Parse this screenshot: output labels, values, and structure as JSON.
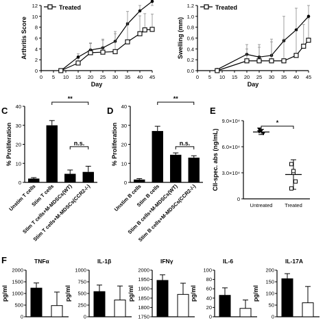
{
  "chart_data": [
    {
      "id": "arthritis",
      "type": "line",
      "ylabel": "Arthritis Score",
      "xlabel": "Day",
      "ylim": [
        0,
        12
      ],
      "yticks": [
        0,
        2,
        4,
        6,
        8,
        10,
        12
      ],
      "xlim": [
        0,
        45
      ],
      "xticks": [
        0,
        5,
        10,
        15,
        20,
        25,
        30,
        35,
        40,
        45
      ],
      "legend": "Treated",
      "series": [
        {
          "role": "untreated",
          "marker": "circle-filled",
          "x": [
            8,
            15,
            20,
            25,
            30,
            35,
            40,
            45
          ],
          "y": [
            0,
            2.5,
            3.8,
            4.2,
            5.4,
            8.6,
            11.0,
            13.0
          ],
          "err": [
            0,
            0.6,
            1.2,
            1.4,
            1.8,
            2.3,
            1.6,
            0.6
          ]
        },
        {
          "role": "treated",
          "name": "Treated",
          "marker": "square-open",
          "x": [
            8,
            15,
            20,
            25,
            30,
            35,
            40,
            42,
            45
          ],
          "y": [
            0,
            1.4,
            3.3,
            3.4,
            3.5,
            5.3,
            6.8,
            7.5,
            7.6
          ],
          "err": [
            0,
            0.8,
            1.8,
            2.4,
            3.3,
            3.6,
            3.3,
            3.0,
            2.8
          ]
        }
      ]
    },
    {
      "id": "swelling",
      "type": "line",
      "ylabel": "Swelling (mm)",
      "xlabel": "Day",
      "ylim": [
        0,
        1.2
      ],
      "yticks": [
        "0.0",
        "0.2",
        "0.4",
        "0.6",
        "0.8",
        "1.0",
        "1.2"
      ],
      "xlim": [
        0,
        45
      ],
      "xticks": [
        0,
        5,
        10,
        15,
        20,
        25,
        30,
        35,
        40,
        45
      ],
      "legend": "Treated",
      "series": [
        {
          "role": "untreated",
          "marker": "circle-filled",
          "x": [
            8,
            20,
            25,
            30,
            35,
            40,
            45
          ],
          "y": [
            0.02,
            0.3,
            0.25,
            0.28,
            0.55,
            0.75,
            1.0
          ],
          "err": [
            0,
            0.1,
            0.18,
            0.3,
            0.45,
            0.4,
            0.25
          ]
        },
        {
          "role": "treated",
          "name": "Treated",
          "marker": "square-open",
          "x": [
            8,
            20,
            25,
            30,
            35,
            40,
            43,
            45
          ],
          "y": [
            0.0,
            0.18,
            0.18,
            0.18,
            0.18,
            0.28,
            0.45,
            0.56
          ],
          "err": [
            0,
            0.3,
            0.3,
            0.35,
            0.4,
            0.45,
            0.4,
            0.4
          ]
        }
      ]
    },
    {
      "id": "C",
      "type": "bar",
      "ylabel": "% Proliferation",
      "ylim": [
        0,
        40
      ],
      "yticks": [
        0,
        10,
        20,
        30,
        40
      ],
      "categories": [
        "Unstim T cells",
        "Stim T cells",
        "Stim T cells+M-MDSCs(WT)",
        "Stim T cells+M-MDSCs(CCR2-/-)"
      ],
      "values": [
        2.0,
        30.0,
        4.5,
        5.5
      ],
      "err": [
        0.5,
        2.5,
        2.0,
        3.0
      ],
      "brackets": [
        {
          "from": 1,
          "to": 3,
          "label": "**"
        },
        {
          "from": 2,
          "to": 3,
          "label": "n.s."
        }
      ]
    },
    {
      "id": "D",
      "type": "bar",
      "ylabel": "% Proliferation",
      "ylim": [
        0,
        40
      ],
      "yticks": [
        0,
        10,
        20,
        30,
        40
      ],
      "categories": [
        "Unstim B cells",
        "Stim B cells",
        "Stim B cells+M-MDSCs(WT)",
        "Stim B cells+M-MDSCs(CCR2-/-)"
      ],
      "values": [
        1.5,
        27.0,
        14.5,
        13.0
      ],
      "err": [
        0.5,
        2.5,
        1.0,
        1.0
      ],
      "brackets": [
        {
          "from": 1,
          "to": 3,
          "label": "**"
        },
        {
          "from": 2,
          "to": 3,
          "label": "n.s."
        }
      ]
    },
    {
      "id": "E",
      "type": "scatter",
      "ylabel": "CII-spec. abs (ng/mL)",
      "ylim": [
        0,
        90000
      ],
      "yticks": [
        0,
        30000,
        60000,
        90000
      ],
      "ytick_labels": [
        "0",
        "3.0×10⁴",
        "6.0×10⁴",
        "9.0×10⁴"
      ],
      "categories": [
        "Untreated",
        "Treated"
      ],
      "groups": [
        {
          "name": "Untreated",
          "marker": "triangle-filled",
          "values": [
            80000,
            78000,
            75000,
            77000
          ],
          "mean": 77000,
          "sd": 3000
        },
        {
          "name": "Treated",
          "marker": "square-open",
          "values": [
            40000,
            30000,
            20000,
            12000,
            32000
          ],
          "mean": 28000,
          "sd": 17000
        }
      ],
      "brackets": [
        {
          "from": 0,
          "to": 1,
          "label": "*"
        }
      ]
    },
    {
      "id": "F",
      "type": "bar",
      "ylabel": "pg/ml",
      "panels": [
        {
          "title": "TNFα",
          "ylim": [
            0,
            2000
          ],
          "yticks": [
            0,
            500,
            1000,
            1500,
            2000
          ],
          "values": [
            1230,
            480
          ],
          "err": [
            220,
            580
          ]
        },
        {
          "title": "IL-1β",
          "ylim": [
            0,
            1000
          ],
          "yticks": [
            0,
            250,
            500,
            750,
            1000
          ],
          "values": [
            540,
            360
          ],
          "err": [
            140,
            300
          ]
        },
        {
          "title": "IFNγ",
          "ylim": [
            1750,
            2000
          ],
          "yticks": [
            1750,
            1800,
            1850,
            1900,
            1950,
            2000
          ],
          "values": [
            1945,
            1870
          ],
          "err": [
            30,
            60
          ]
        },
        {
          "title": "IL-6",
          "ylim": [
            0,
            100
          ],
          "yticks": [
            0,
            20,
            40,
            60,
            80,
            100
          ],
          "values": [
            46,
            18
          ],
          "err": [
            16,
            18
          ]
        },
        {
          "title": "IL-17A",
          "ylim": [
            0,
            200
          ],
          "yticks": [
            0,
            50,
            100,
            150,
            200
          ],
          "values": [
            163,
            60
          ],
          "err": [
            22,
            70
          ]
        }
      ]
    }
  ],
  "panel_labels": {
    "c": "C",
    "d": "D",
    "e": "E",
    "f": "F"
  },
  "axis_text": {
    "day": "Day"
  }
}
